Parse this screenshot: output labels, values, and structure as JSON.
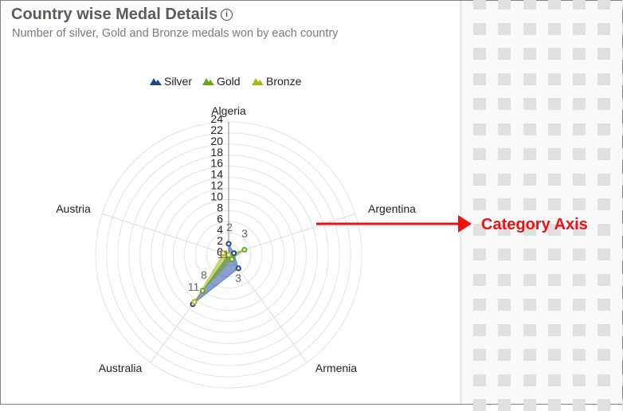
{
  "header": {
    "title": "Country wise Medal Details",
    "info_icon": "info-circle-icon",
    "subtitle": "Number of silver, Gold and Bronze medals won by each country"
  },
  "annotation": {
    "label": "Category Axis",
    "color": "#ee1111"
  },
  "chart_data": {
    "type": "radar",
    "title": "Country wise Medal Details",
    "subtitle": "Number of silver, Gold and Bronze medals won by each country",
    "categories": [
      "Algeria",
      "Argentina",
      "Armenia",
      "Australia",
      "Austria"
    ],
    "series": [
      {
        "name": "Silver",
        "color": "#1f4690",
        "values": [
          2,
          1,
          3,
          11,
          0
        ]
      },
      {
        "name": "Gold",
        "color": "#6aa61d",
        "values": [
          0,
          3,
          1,
          8,
          0
        ]
      },
      {
        "name": "Bronze",
        "color": "#a8b819",
        "values": [
          0,
          0,
          0,
          10.5,
          1
        ]
      }
    ],
    "data_labels": [
      "2",
      "1",
      "3",
      "3",
      "1",
      "8",
      "11",
      "0"
    ],
    "value_axis": {
      "min": 0,
      "max": 24,
      "step": 2,
      "ticks": [
        "0",
        "2",
        "4",
        "6",
        "8",
        "10",
        "12",
        "14",
        "16",
        "18",
        "20",
        "22",
        "24"
      ]
    },
    "legend": {
      "position": "top",
      "entries": [
        "Silver",
        "Gold",
        "Bronze"
      ]
    },
    "grid": true
  }
}
